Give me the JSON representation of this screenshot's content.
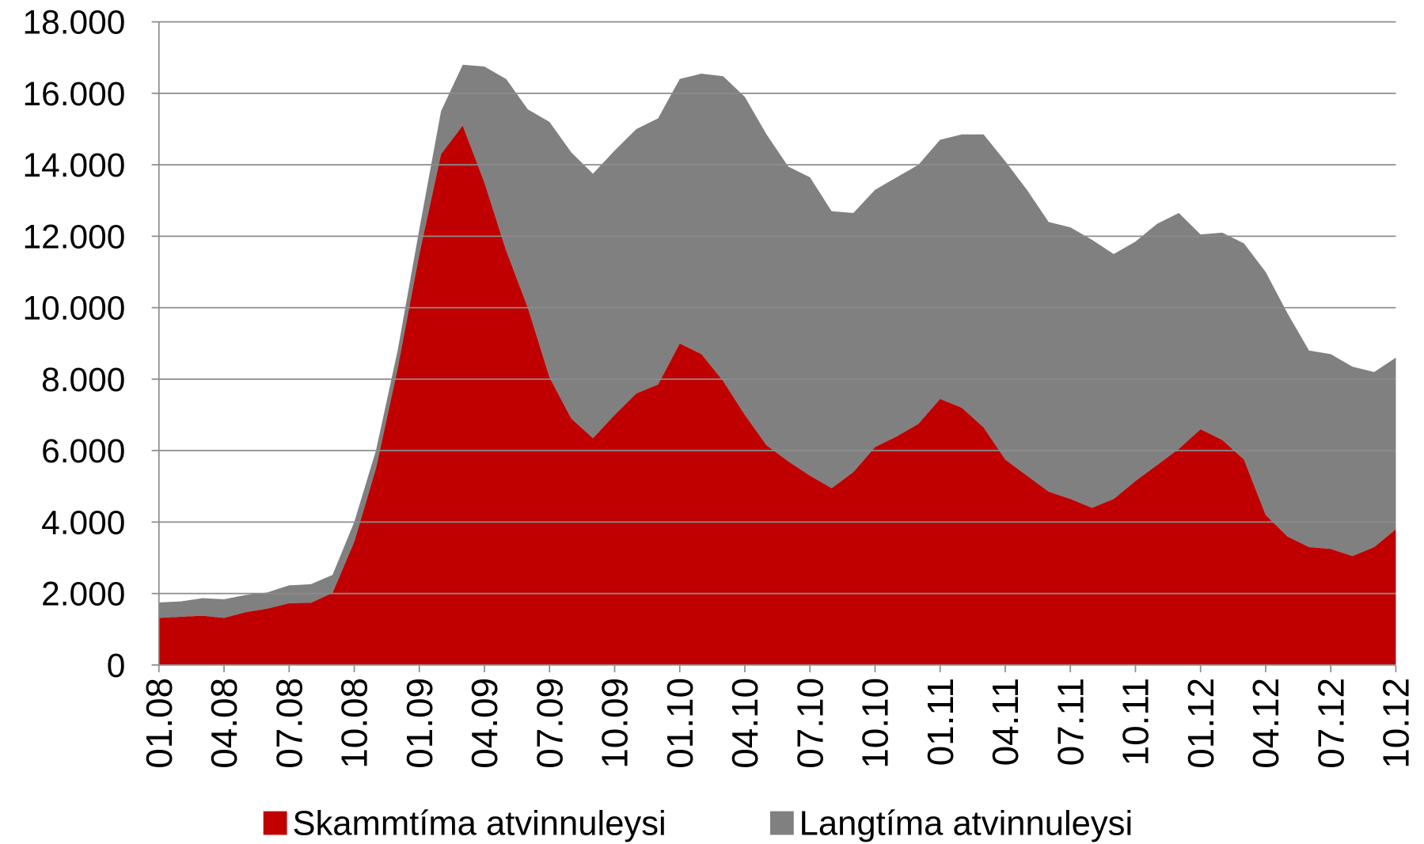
{
  "chart_data": {
    "type": "stacked_area",
    "categories": [
      "01.08",
      null,
      null,
      "04.08",
      null,
      null,
      "07.08",
      null,
      null,
      "10.08",
      null,
      null,
      "01.09",
      null,
      null,
      "04.09",
      null,
      null,
      "07.09",
      null,
      null,
      "10.09",
      null,
      null,
      "01.10",
      null,
      null,
      "04.10",
      null,
      null,
      "07.10",
      null,
      null,
      "10.10",
      null,
      null,
      "01.11",
      null,
      null,
      "04.11",
      null,
      null,
      "07.11",
      null,
      null,
      "10.11",
      null,
      null,
      "01.12",
      null,
      null,
      "04.12",
      null,
      null,
      "07.12",
      null,
      null,
      "10.12"
    ],
    "series": [
      {
        "name": "Skammtíma atvinnuleysi",
        "color": "#c00000",
        "values": [
          1320,
          1350,
          1380,
          1320,
          1480,
          1580,
          1730,
          1740,
          2020,
          3450,
          5500,
          8300,
          11500,
          14300,
          15100,
          13500,
          11600,
          10000,
          8050,
          6900,
          6350,
          7000,
          7600,
          7850,
          9000,
          8700,
          7950,
          7000,
          6150,
          5700,
          5300,
          4950,
          5400,
          6100,
          6400,
          6750,
          7450,
          7200,
          6650,
          5750,
          5300,
          4850,
          4650,
          4400,
          4650,
          5150,
          5600,
          6050,
          6600,
          6300,
          5750,
          4200,
          3600,
          3300,
          3250,
          3050,
          3300,
          3800
        ]
      },
      {
        "name": "Langtíma atvinnuleysi",
        "color": "#808080",
        "values": [
          430,
          430,
          490,
          520,
          480,
          450,
          500,
          520,
          500,
          550,
          500,
          500,
          700,
          1200,
          1700,
          3250,
          4800,
          5550,
          7150,
          7450,
          7400,
          7400,
          7400,
          7450,
          7400,
          7850,
          8530,
          8900,
          8700,
          8250,
          8350,
          7750,
          7250,
          7200,
          7250,
          7250,
          7250,
          7650,
          8200,
          8350,
          8000,
          7550,
          7600,
          7500,
          6850,
          6700,
          6750,
          6600,
          5450,
          5800,
          6050,
          6800,
          6250,
          5500,
          5450,
          5300,
          4900,
          4800
        ]
      }
    ],
    "ylim": [
      0,
      18000
    ],
    "yticks": [
      0,
      {
        "value": 2000,
        "label": "2.000"
      },
      {
        "value": 4000,
        "label": "4.000"
      },
      {
        "value": 6000,
        "label": "6.000"
      },
      {
        "value": 8000,
        "label": "8.000"
      },
      {
        "value": 10000,
        "label": "10.000"
      },
      {
        "value": 12000,
        "label": "12.000"
      },
      {
        "value": 14000,
        "label": "14.000"
      },
      {
        "value": 16000,
        "label": "16.000"
      },
      {
        "value": 18000,
        "label": "18.000"
      }
    ],
    "grid": true,
    "legend": "bottom"
  }
}
